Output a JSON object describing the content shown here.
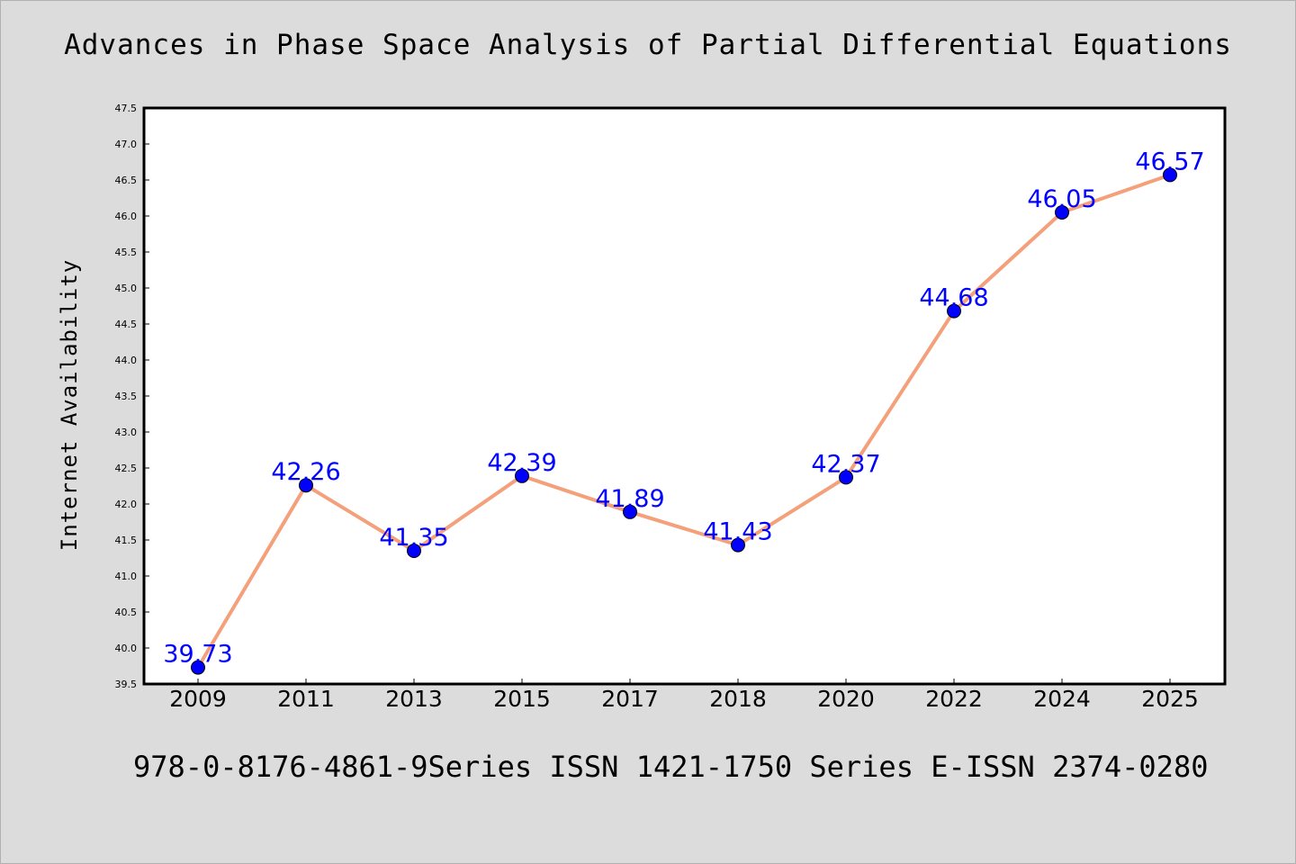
{
  "chart_data": {
    "type": "line",
    "title": "Advances in Phase Space Analysis of Partial Differential Equations",
    "xlabel": "",
    "ylabel": "Internet Availability",
    "categories": [
      "2009",
      "2011",
      "2013",
      "2015",
      "2017",
      "2018",
      "2020",
      "2022",
      "2024",
      "2025"
    ],
    "series": [
      {
        "values": [
          39.73,
          42.26,
          41.35,
          42.39,
          41.89,
          41.43,
          42.37,
          44.68,
          46.05,
          46.57
        ],
        "labels": [
          "39.73",
          "42.26",
          "41.35",
          "42.39",
          "41.89",
          "41.43",
          "42.37",
          "44.68",
          "46.05",
          "46.57"
        ]
      }
    ],
    "ylim": [
      39.5,
      47.5
    ],
    "yticks": [
      "39.5",
      "40.0",
      "40.5",
      "41.0",
      "41.5",
      "42.0",
      "42.5",
      "43.0",
      "43.5",
      "44.0",
      "44.5",
      "45.0",
      "45.5",
      "46.0",
      "46.5",
      "47.0",
      "47.5"
    ],
    "grid": false,
    "legend": "none"
  },
  "footer": "978-0-8176-4861-9Series ISSN 1421-1750 Series E-ISSN 2374-0280",
  "colors": {
    "line": "#f4a07a",
    "marker": "#0000ff",
    "label": "#0000ff",
    "background": "#dcdcdc",
    "plot_background": "#ffffff"
  }
}
